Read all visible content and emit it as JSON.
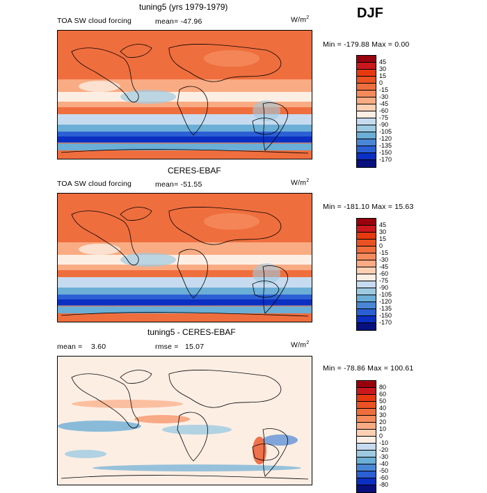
{
  "season": "DJF",
  "panels": [
    {
      "title": "tuning5 (yrs 1979-1979)",
      "left_label": "TOA SW cloud forcing",
      "mean_label": "mean= ",
      "mean_value": "-47.96",
      "units": "W/m",
      "units_sup": "2",
      "minmax": "Min = -179.88 Max =    0.00",
      "levels": [
        "45",
        "30",
        "15",
        "0",
        "-15",
        "-30",
        "-45",
        "-60",
        "-75",
        "-90",
        "-105",
        "-120",
        "-135",
        "-150",
        "-170"
      ],
      "colors": [
        "#99000d",
        "#cb181d",
        "#e6390f",
        "#ea5224",
        "#ef6e3e",
        "#f58b5c",
        "#f9ab83",
        "#fdd0b4",
        "#fdeee4",
        "#c6dbef",
        "#9ecae1",
        "#6baed6",
        "#4a86d6",
        "#2b5fd4",
        "#0a2fc2",
        "#08107e"
      ]
    },
    {
      "title": "CERES-EBAF",
      "left_label": "TOA SW cloud forcing",
      "mean_label": "mean= ",
      "mean_value": "-51.55",
      "units": "W/m",
      "units_sup": "2",
      "minmax": "Min = -181.10 Max =   15.63",
      "levels": [
        "45",
        "30",
        "15",
        "0",
        "-15",
        "-30",
        "-45",
        "-60",
        "-75",
        "-90",
        "-105",
        "-120",
        "-135",
        "-150",
        "-170"
      ],
      "colors": [
        "#99000d",
        "#cb181d",
        "#e6390f",
        "#ea5224",
        "#ef6e3e",
        "#f58b5c",
        "#f9ab83",
        "#fdd0b4",
        "#fdeee4",
        "#c6dbef",
        "#9ecae1",
        "#6baed6",
        "#4a86d6",
        "#2b5fd4",
        "#0a2fc2",
        "#08107e"
      ]
    },
    {
      "title": "tuning5 - CERES-EBAF",
      "left_label": "mean =",
      "mean_label": "",
      "mean_value": "3.60",
      "rmse_label": "rmse =",
      "rmse_value": "15.07",
      "units": "W/m",
      "units_sup": "2",
      "minmax": "Min = -78.86 Max = 100.61",
      "levels": [
        "80",
        "60",
        "50",
        "40",
        "30",
        "20",
        "10",
        "0",
        "-10",
        "-20",
        "-30",
        "-40",
        "-50",
        "-60",
        "-80"
      ],
      "colors": [
        "#99000d",
        "#cb181d",
        "#e6390f",
        "#ea5224",
        "#ef6e3e",
        "#f58b5c",
        "#f9ab83",
        "#fdd0b4",
        "#fdeee4",
        "#c6dbef",
        "#9ecae1",
        "#6baed6",
        "#4a86d6",
        "#2b5fd4",
        "#0a2fc2",
        "#08107e"
      ]
    }
  ],
  "chart_data": [
    {
      "type": "heatmap",
      "title": "tuning5 (yrs 1979-1979)",
      "variable": "TOA SW cloud forcing",
      "units": "W/m2",
      "mean": -47.96,
      "min": -179.88,
      "max": 0.0,
      "contour_levels": [
        45,
        30,
        15,
        0,
        -15,
        -30,
        -45,
        -60,
        -75,
        -90,
        -105,
        -120,
        -135,
        -150,
        -170
      ]
    },
    {
      "type": "heatmap",
      "title": "CERES-EBAF",
      "variable": "TOA SW cloud forcing",
      "units": "W/m2",
      "mean": -51.55,
      "min": -181.1,
      "max": 15.63,
      "contour_levels": [
        45,
        30,
        15,
        0,
        -15,
        -30,
        -45,
        -60,
        -75,
        -90,
        -105,
        -120,
        -135,
        -150,
        -170
      ]
    },
    {
      "type": "heatmap",
      "title": "tuning5 - CERES-EBAF",
      "units": "W/m2",
      "mean": 3.6,
      "rmse": 15.07,
      "min": -78.86,
      "max": 100.61,
      "contour_levels": [
        80,
        60,
        50,
        40,
        30,
        20,
        10,
        0,
        -10,
        -20,
        -30,
        -40,
        -50,
        -60,
        -80
      ]
    }
  ]
}
